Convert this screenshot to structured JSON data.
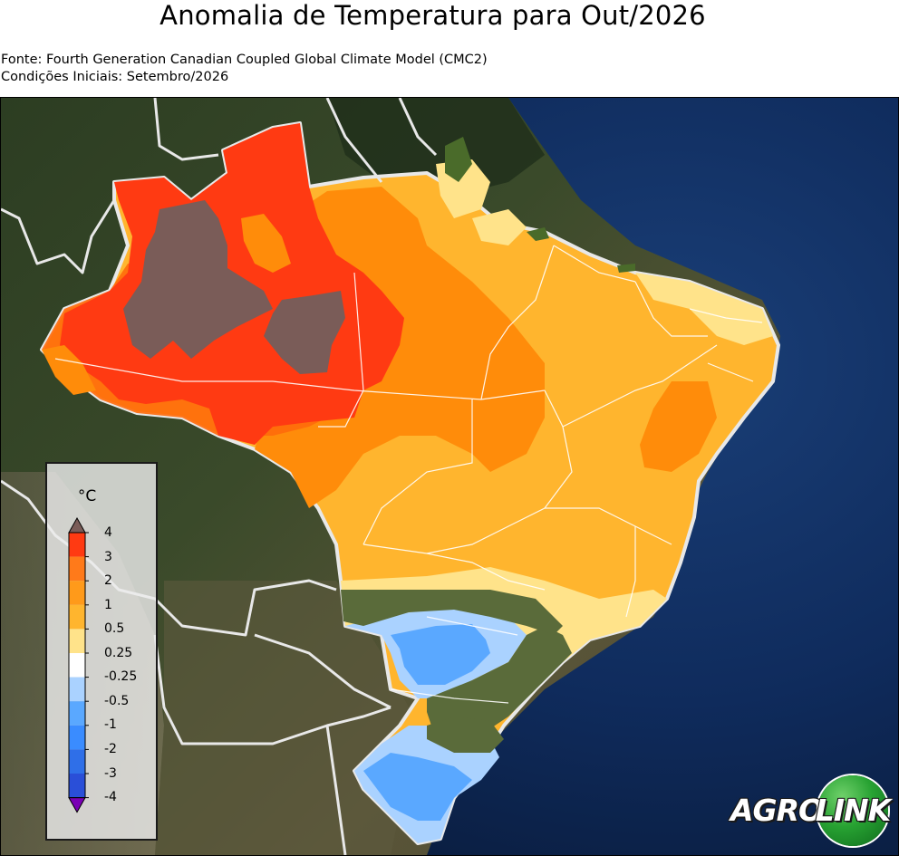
{
  "title": "Anomalia de Temperatura para Out/2026",
  "subtitle_source": "Fonte: Fourth Generation Canadian Coupled Global Climate Model (CMC2)",
  "subtitle_initial": "Condições Iniciais: Setembro/2026",
  "legend": {
    "unit": "°C",
    "ticks": [
      "4",
      "3",
      "2",
      "1",
      "0.5",
      "0.25",
      "-0.25",
      "-0.5",
      "-1",
      "-2",
      "-3",
      "-4"
    ],
    "colors": {
      "above_4": "#7a5c58",
      "3_to_4": "#ff3a12",
      "2_to_3": "#ff7a1a",
      "1_to_2": "#ff9a1a",
      "0.5_to_1": "#ffb52e",
      "0.25_to_0.5": "#ffe38a",
      "neutral": "#ffffff",
      "-0.5_to_-0.25": "#aad2ff",
      "-1_to_-0.5": "#5aa8ff",
      "-2_to_-1": "#3a8cff",
      "-3_to_-2": "#2f6fe8",
      "-4_to_-3": "#2a4fd8",
      "below_-4": "#7a00b5"
    }
  },
  "logo": {
    "part1": "AGRO",
    "part2": "LINK"
  }
}
